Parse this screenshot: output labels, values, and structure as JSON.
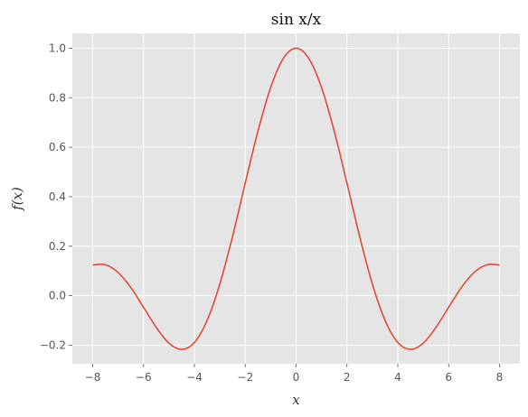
{
  "chart_data": {
    "type": "line",
    "title": "sin x/x",
    "xlabel": "x",
    "ylabel": "f(x)",
    "xlim": [
      -8.8,
      8.8
    ],
    "ylim": [
      -0.275,
      1.06
    ],
    "xticks": [
      -8,
      -6,
      -4,
      -2,
      0,
      2,
      4,
      6,
      8
    ],
    "xtick_labels": [
      "−8",
      "−6",
      "−4",
      "−2",
      "0",
      "2",
      "4",
      "6",
      "8"
    ],
    "yticks": [
      -0.2,
      0.0,
      0.2,
      0.4,
      0.6,
      0.8,
      1.0
    ],
    "ytick_labels": [
      "−0.2",
      "0.0",
      "0.2",
      "0.4",
      "0.6",
      "0.8",
      "1.0"
    ],
    "grid": true,
    "series": [
      {
        "color": "#e24a33",
        "x": [
          -8.0,
          -7.5,
          -7.0,
          -6.5,
          -6.0,
          -5.5,
          -5.0,
          -4.5,
          -4.0,
          -3.5,
          -3.0,
          -2.5,
          -2.0,
          -1.5,
          -1.0,
          -0.5,
          0.0,
          0.5,
          1.0,
          1.5,
          2.0,
          2.5,
          3.0,
          3.5,
          4.0,
          4.5,
          5.0,
          5.5,
          6.0,
          6.5,
          7.0,
          7.5,
          8.0
        ],
        "y": [
          0.124,
          0.125,
          0.094,
          0.033,
          -0.047,
          -0.128,
          -0.192,
          -0.217,
          -0.189,
          -0.1,
          0.047,
          0.239,
          0.455,
          0.665,
          0.841,
          0.959,
          1.0,
          0.959,
          0.841,
          0.665,
          0.455,
          0.239,
          0.047,
          -0.1,
          -0.189,
          -0.217,
          -0.192,
          -0.128,
          -0.047,
          0.033,
          0.094,
          0.125,
          0.124
        ]
      }
    ]
  },
  "colors": {
    "plot_background": "#e5e5e5",
    "grid": "#ffffff",
    "line": "#e24a33"
  }
}
